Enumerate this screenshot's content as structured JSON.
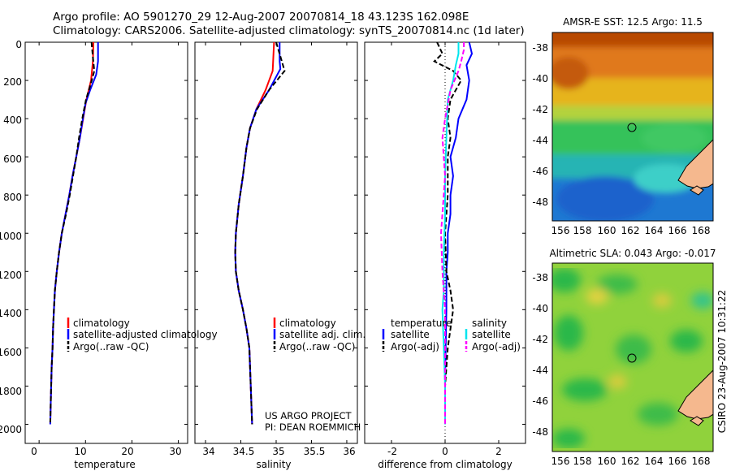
{
  "header": {
    "line1": "Argo profile: AO 5901270_29 12-Aug-2007 20070814_18 43.123S 162.098E",
    "line2": "Climatology: CARS2006. Satellite-adjusted climatology: synTS_20070814.nc (1d later)"
  },
  "credit": {
    "line1": "US ARGO PROJECT",
    "line2": "PI: DEAN ROEMMICH"
  },
  "footer": "CSIRO 23-Aug-2007 10:31:22",
  "y_ticks": [
    "0",
    "200",
    "400",
    "600",
    "800",
    "1000",
    "1200",
    "1400",
    "1600",
    "1800",
    "2000"
  ],
  "legend_temp": {
    "clim": "climatology",
    "sat": "satellite-adjusted climatology",
    "argo": "Argo(..raw -QC)"
  },
  "legend_sal": {
    "clim": "climatology",
    "sat": "satellite adj. clim.",
    "argo": "Argo(..raw -QC)"
  },
  "legend_diff": {
    "temp_head": "temperature",
    "temp_sat": "satellite",
    "temp_argo": "Argo(-adj)",
    "sal_head": "salinity",
    "sal_sat": "satellite",
    "sal_argo": "Argo(-adj)"
  },
  "colors": {
    "clim": "#ff0000",
    "sat": "#0000ff",
    "argo": "#000000",
    "sal_sat": "#00e5ee",
    "sal_argo": "#ff00ff"
  },
  "chart_data": [
    {
      "type": "line",
      "xlabel": "temperature",
      "ylabel": "",
      "x_ticks": [
        "0",
        "10",
        "20",
        "30"
      ],
      "xlim": [
        -3,
        32
      ],
      "ylim": [
        2100,
        0
      ],
      "series": [
        {
          "name": "climatology",
          "color": "#ff0000",
          "points": [
            [
              11.7,
              0
            ],
            [
              11.6,
              100
            ],
            [
              11.2,
              200
            ],
            [
              10.2,
              300
            ],
            [
              9.5,
              400
            ],
            [
              8.8,
              500
            ],
            [
              8.0,
              600
            ],
            [
              7.2,
              700
            ],
            [
              6.5,
              800
            ],
            [
              5.7,
              900
            ],
            [
              4.9,
              1000
            ],
            [
              4.3,
              1100
            ],
            [
              3.8,
              1200
            ],
            [
              3.4,
              1300
            ],
            [
              3.2,
              1400
            ],
            [
              3.0,
              1500
            ],
            [
              2.9,
              1600
            ],
            [
              2.7,
              1700
            ],
            [
              2.6,
              1800
            ],
            [
              2.5,
              1900
            ],
            [
              2.4,
              2000
            ]
          ]
        },
        {
          "name": "satellite-adjusted climatology",
          "color": "#0000ff",
          "points": [
            [
              12.7,
              0
            ],
            [
              12.7,
              100
            ],
            [
              12.3,
              170
            ],
            [
              11.0,
              250
            ],
            [
              10.0,
              320
            ],
            [
              9.3,
              420
            ],
            [
              8.8,
              500
            ],
            [
              8.0,
              600
            ],
            [
              7.2,
              700
            ],
            [
              6.5,
              800
            ],
            [
              5.7,
              900
            ],
            [
              4.9,
              1000
            ],
            [
              4.3,
              1100
            ],
            [
              3.8,
              1200
            ],
            [
              3.4,
              1300
            ],
            [
              3.2,
              1400
            ],
            [
              3.0,
              1500
            ],
            [
              2.9,
              1600
            ],
            [
              2.7,
              1700
            ],
            [
              2.6,
              1800
            ],
            [
              2.5,
              1900
            ],
            [
              2.4,
              2000
            ]
          ]
        },
        {
          "name": "Argo(..raw -QC)",
          "color": "#000000",
          "dashed": true,
          "points": [
            [
              11.3,
              0
            ],
            [
              11.6,
              80
            ],
            [
              11.9,
              150
            ],
            [
              11.1,
              220
            ],
            [
              10.1,
              300
            ],
            [
              9.3,
              400
            ],
            [
              8.6,
              500
            ],
            [
              8.0,
              600
            ],
            [
              7.3,
              700
            ],
            [
              6.6,
              800
            ],
            [
              5.8,
              900
            ],
            [
              4.9,
              1000
            ],
            [
              4.3,
              1100
            ],
            [
              3.8,
              1200
            ],
            [
              3.4,
              1300
            ],
            [
              3.2,
              1400
            ],
            [
              3.0,
              1500
            ],
            [
              2.9,
              1600
            ],
            [
              2.7,
              1700
            ],
            [
              2.6,
              1800
            ],
            [
              2.5,
              1900
            ],
            [
              2.4,
              1990
            ]
          ]
        }
      ]
    },
    {
      "type": "line",
      "xlabel": "salinity",
      "ylabel": "",
      "x_ticks": [
        "34",
        "34.5",
        "35",
        "35.5",
        "36"
      ],
      "xlim": [
        33.85,
        36.15
      ],
      "ylim": [
        2100,
        0
      ],
      "series": [
        {
          "name": "climatology",
          "color": "#ff0000",
          "points": [
            [
              34.97,
              0
            ],
            [
              34.96,
              80
            ],
            [
              34.95,
              150
            ],
            [
              34.85,
              250
            ],
            [
              34.72,
              350
            ],
            [
              34.63,
              450
            ],
            [
              34.58,
              550
            ],
            [
              34.53,
              700
            ],
            [
              34.47,
              850
            ],
            [
              34.43,
              1000
            ],
            [
              34.42,
              1100
            ],
            [
              34.43,
              1200
            ],
            [
              34.47,
              1300
            ],
            [
              34.53,
              1400
            ],
            [
              34.58,
              1500
            ],
            [
              34.62,
              1600
            ],
            [
              34.64,
              1800
            ],
            [
              34.66,
              2000
            ]
          ]
        },
        {
          "name": "satellite adj. clim.",
          "color": "#0000ff",
          "points": [
            [
              35.05,
              0
            ],
            [
              35.05,
              100
            ],
            [
              35.06,
              140
            ],
            [
              34.9,
              250
            ],
            [
              34.72,
              350
            ],
            [
              34.63,
              450
            ],
            [
              34.58,
              550
            ],
            [
              34.53,
              700
            ],
            [
              34.47,
              850
            ],
            [
              34.43,
              1000
            ],
            [
              34.42,
              1100
            ],
            [
              34.43,
              1200
            ],
            [
              34.47,
              1300
            ],
            [
              34.53,
              1400
            ],
            [
              34.58,
              1500
            ],
            [
              34.62,
              1600
            ],
            [
              34.64,
              1800
            ],
            [
              34.66,
              2000
            ]
          ]
        },
        {
          "name": "Argo(..raw -QC)",
          "color": "#000000",
          "dashed": true,
          "points": [
            [
              35.0,
              0
            ],
            [
              35.08,
              100
            ],
            [
              35.12,
              150
            ],
            [
              34.9,
              250
            ],
            [
              34.73,
              350
            ],
            [
              34.63,
              450
            ],
            [
              34.58,
              550
            ],
            [
              34.53,
              700
            ],
            [
              34.47,
              850
            ],
            [
              34.43,
              1000
            ],
            [
              34.42,
              1100
            ],
            [
              34.43,
              1200
            ],
            [
              34.47,
              1300
            ],
            [
              34.53,
              1400
            ],
            [
              34.58,
              1500
            ],
            [
              34.62,
              1600
            ],
            [
              34.64,
              1800
            ],
            [
              34.66,
              2000
            ]
          ]
        }
      ]
    },
    {
      "type": "line",
      "xlabel": "difference from climatology",
      "ylabel": "",
      "x_ticks": [
        "-2",
        "0",
        "2"
      ],
      "xlim": [
        -3,
        3
      ],
      "ylim": [
        2100,
        0
      ],
      "series": [
        {
          "name": "temperature satellite",
          "color": "#0000ff",
          "points": [
            [
              0.9,
              0
            ],
            [
              1.0,
              60
            ],
            [
              0.8,
              120
            ],
            [
              0.9,
              200
            ],
            [
              0.8,
              300
            ],
            [
              0.5,
              400
            ],
            [
              0.4,
              500
            ],
            [
              0.2,
              600
            ],
            [
              0.3,
              700
            ],
            [
              0.2,
              800
            ],
            [
              0.2,
              900
            ],
            [
              0.1,
              1000
            ],
            [
              0.1,
              1100
            ],
            [
              0.05,
              1200
            ],
            [
              0.05,
              1400
            ],
            [
              0.02,
              1600
            ],
            [
              0.0,
              1800
            ],
            [
              0.0,
              2000
            ]
          ]
        },
        {
          "name": "temperature Argo(-adj)",
          "color": "#000000",
          "dashed": true,
          "points": [
            [
              -0.3,
              0
            ],
            [
              -0.1,
              60
            ],
            [
              -0.4,
              100
            ],
            [
              0.3,
              150
            ],
            [
              0.6,
              200
            ],
            [
              0.2,
              300
            ],
            [
              0.1,
              400
            ],
            [
              0.2,
              500
            ],
            [
              0.1,
              600
            ],
            [
              0.1,
              800
            ],
            [
              0.0,
              1000
            ],
            [
              0.05,
              1200
            ],
            [
              0.2,
              1300
            ],
            [
              0.3,
              1400
            ],
            [
              0.2,
              1500
            ],
            [
              0.1,
              1600
            ],
            [
              0.0,
              1800
            ],
            [
              0.0,
              2000
            ]
          ]
        },
        {
          "name": "salinity satellite",
          "color": "#00e5ee",
          "points": [
            [
              0.5,
              0
            ],
            [
              0.5,
              60
            ],
            [
              0.4,
              120
            ],
            [
              0.3,
              200
            ],
            [
              0.1,
              300
            ],
            [
              0.05,
              500
            ],
            [
              0.0,
              700
            ],
            [
              0.0,
              900
            ],
            [
              -0.05,
              1100
            ],
            [
              -0.05,
              1300
            ],
            [
              -0.1,
              1400
            ],
            [
              -0.05,
              1600
            ],
            [
              0.0,
              1800
            ],
            [
              0.0,
              2000
            ]
          ]
        },
        {
          "name": "salinity Argo(-adj)",
          "color": "#ff00ff",
          "dashed": true,
          "points": [
            [
              0.7,
              0
            ],
            [
              0.7,
              40
            ],
            [
              0.6,
              100
            ],
            [
              0.5,
              150
            ],
            [
              0.2,
              250
            ],
            [
              0.0,
              400
            ],
            [
              -0.1,
              500
            ],
            [
              0.0,
              700
            ],
            [
              -0.15,
              1000
            ],
            [
              -0.1,
              1200
            ],
            [
              0.0,
              1400
            ],
            [
              0.0,
              1600
            ],
            [
              0.0,
              1800
            ],
            [
              0.0,
              2000
            ]
          ]
        }
      ]
    },
    {
      "type": "heatmap",
      "title": "AMSR-E SST: 12.5 Argo: 11.5",
      "x_ticks": [
        "156",
        "158",
        "160",
        "162",
        "164",
        "166",
        "168"
      ],
      "y_ticks": [
        "-38",
        "-40",
        "-42",
        "-44",
        "-46",
        "-48"
      ],
      "xlim": [
        154.6,
        169.4
      ],
      "ylim": [
        -49.3,
        -37.1
      ],
      "marker": {
        "lon": 162.1,
        "lat": -43.1
      }
    },
    {
      "type": "heatmap",
      "title": "Altimetric SLA: 0.043 Argo: -0.017",
      "x_ticks": [
        "156",
        "158",
        "160",
        "162",
        "164",
        "166",
        "168"
      ],
      "y_ticks": [
        "-38",
        "-40",
        "-42",
        "-44",
        "-46",
        "-48"
      ],
      "xlim": [
        154.6,
        169.4
      ],
      "ylim": [
        -49.3,
        -37.1
      ],
      "marker": {
        "lon": 162.1,
        "lat": -43.1
      }
    }
  ]
}
